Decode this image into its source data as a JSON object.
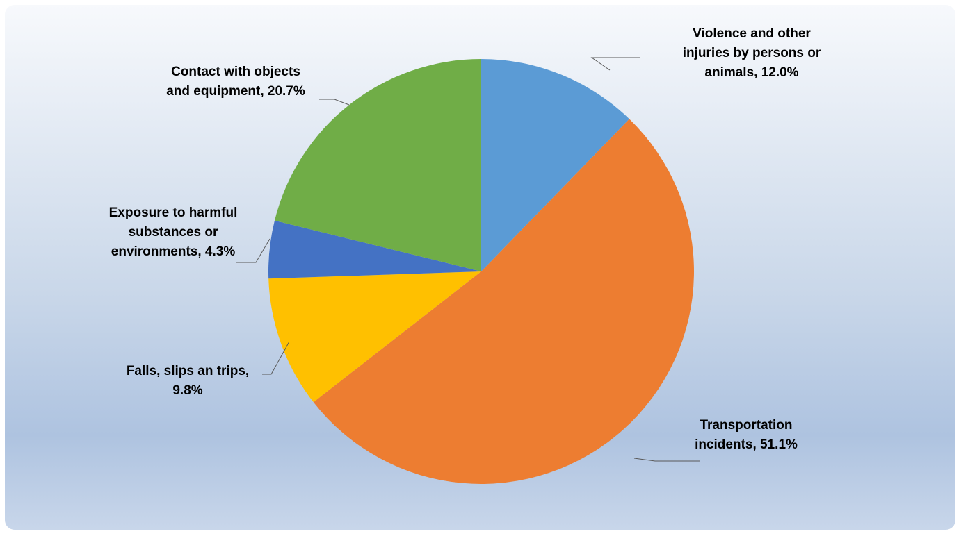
{
  "chart_data": {
    "type": "pie",
    "title": "",
    "start_angle_deg": 0,
    "direction": "clockwise",
    "slices": [
      {
        "name": "Violence and other injuries by persons or animals",
        "value": 12.0,
        "label_lines": [
          "Violence and other",
          "injuries by persons or",
          "animals,  12.0%"
        ],
        "color": "#5B9BD5"
      },
      {
        "name": "Transportation incidents",
        "value": 51.1,
        "label_lines": [
          "Transportation",
          "incidents, 51.1%"
        ],
        "color": "#ED7D31"
      },
      {
        "name": "Falls, slips an trips",
        "value": 9.8,
        "label_lines": [
          "Falls, slips an trips,",
          "9.8%"
        ],
        "color": "#FFC000"
      },
      {
        "name": "Exposure to harmful substances or environments",
        "value": 4.3,
        "label_lines": [
          "Exposure to harmful",
          "substances or",
          "environments,  4.3%"
        ],
        "color": "#4472C4"
      },
      {
        "name": "Contact with objects and equipment",
        "value": 20.7,
        "label_lines": [
          "Contact with objects",
          "and equipment,  20.7%"
        ],
        "color": "#70AD47"
      }
    ]
  }
}
